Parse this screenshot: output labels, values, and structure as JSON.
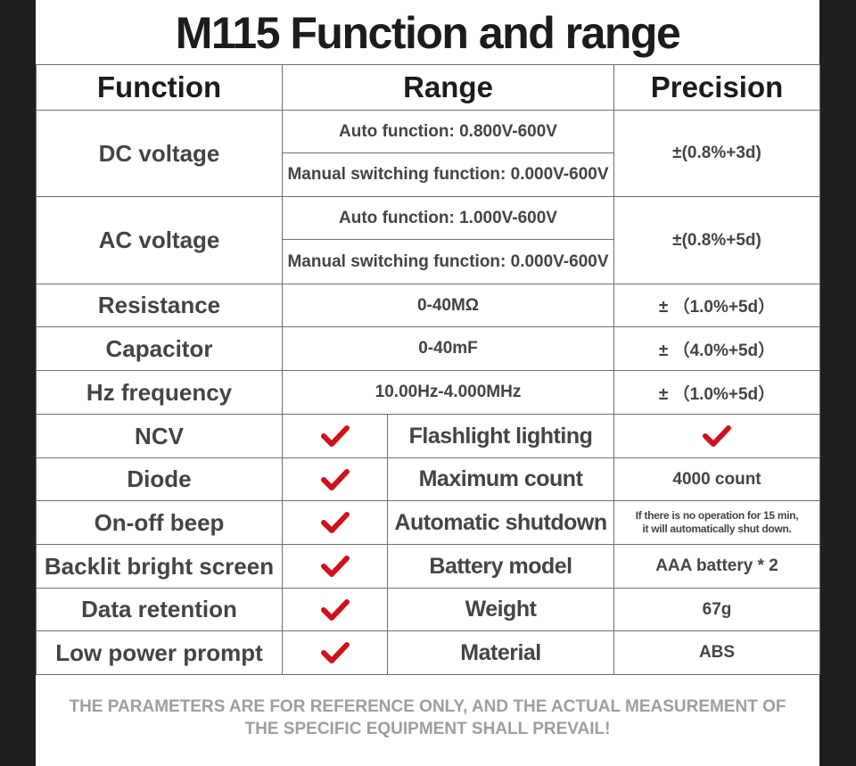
{
  "title": "M115 Function and range",
  "headers": {
    "function": "Function",
    "range": "Range",
    "precision": "Precision"
  },
  "measurements": [
    {
      "function": "DC voltage",
      "range_auto": "Auto function: 0.800V-600V",
      "range_manual": "Manual switching function: 0.000V-600V",
      "precision": "±(0.8%+3d)"
    },
    {
      "function": "AC voltage",
      "range_auto": "Auto function: 1.000V-600V",
      "range_manual": "Manual switching function: 0.000V-600V",
      "precision": "±(0.8%+5d)"
    },
    {
      "function": "Resistance",
      "range": "0-40MΩ",
      "precision": "± （1.0%+5d）"
    },
    {
      "function": "Capacitor",
      "range": "0-40mF",
      "precision": "± （4.0%+5d）"
    },
    {
      "function": "Hz frequency",
      "range": "10.00Hz-4.000MHz",
      "precision": "± （1.0%+5d）"
    }
  ],
  "features": [
    {
      "left": "NCV",
      "left_supported": true,
      "right_label": "Flashlight lighting",
      "right_value": "",
      "right_check": true
    },
    {
      "left": "Diode",
      "left_supported": true,
      "right_label": "Maximum count",
      "right_value": "4000 count",
      "right_check": false
    },
    {
      "left": "On-off beep",
      "left_supported": true,
      "right_label": "Automatic shutdown",
      "right_value_line1": "If there is no operation for 15 min,",
      "right_value_line2": "it will automatically shut down.",
      "right_check": false
    },
    {
      "left": "Backlit bright screen",
      "left_supported": true,
      "right_label": "Battery model",
      "right_value": "AAA battery * 2",
      "right_check": false
    },
    {
      "left": "Data retention",
      "left_supported": true,
      "right_label": "Weight",
      "right_value": "67g",
      "right_check": false
    },
    {
      "left": "Low power prompt",
      "left_supported": true,
      "right_label": "Material",
      "right_value": "ABS",
      "right_check": false
    }
  ],
  "icons": {
    "check": "red-checkmark-icon",
    "check_color": "#d0101c"
  },
  "footer": {
    "line1": "THE PARAMETERS ARE FOR REFERENCE ONLY, AND THE ACTUAL MEASUREMENT OF",
    "line2": "THE SPECIFIC EQUIPMENT SHALL PREVAIL!"
  }
}
